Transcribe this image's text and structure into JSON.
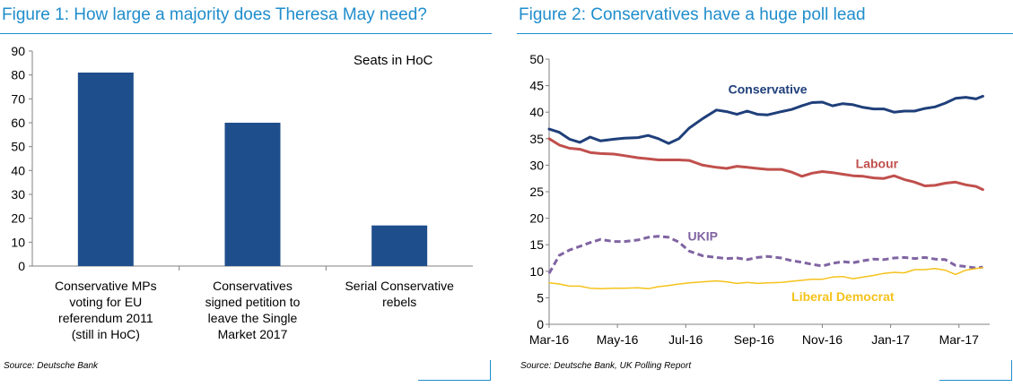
{
  "chart_data": [
    {
      "type": "bar",
      "title": "Figure 1: How large a majority does Theresa May need?",
      "annotation": "Seats in HoC",
      "categories": [
        [
          "Conservative MPs",
          "voting for EU",
          "referendum  2011",
          "(still in HoC)"
        ],
        [
          "Conservatives",
          "signed petition  to",
          "leave the Single",
          "Market 2017"
        ],
        [
          "Serial Conservative",
          "rebels"
        ]
      ],
      "values": [
        81,
        60,
        17
      ],
      "ylim": [
        0,
        90
      ],
      "yticks": [
        0,
        10,
        20,
        30,
        40,
        50,
        60,
        70,
        80,
        90
      ],
      "xlabel": "",
      "ylabel": "",
      "bar_color": "#1f4e8c",
      "source": "Source: Deutsche Bank"
    },
    {
      "type": "line",
      "title": "Figure 2: Conservatives have a huge poll lead",
      "ylim": [
        0,
        50
      ],
      "yticks": [
        0,
        5,
        10,
        15,
        20,
        25,
        30,
        35,
        40,
        45,
        50
      ],
      "xlim": [
        0,
        12.9
      ],
      "xticks": [
        {
          "x": 0,
          "label": "Mar-16"
        },
        {
          "x": 2,
          "label": "May-16"
        },
        {
          "x": 4,
          "label": "Jul-16"
        },
        {
          "x": 6,
          "label": "Sep-16"
        },
        {
          "x": 8,
          "label": "Nov-16"
        },
        {
          "x": 10,
          "label": "Jan-17"
        },
        {
          "x": 12,
          "label": "Mar-17"
        }
      ],
      "x_unit": "months since Mar-16",
      "series": [
        {
          "name": "Conservative",
          "color": "#1f3f7a",
          "dashed": false,
          "width": 3,
          "label_pos": [
            6.4,
            43.5
          ],
          "points": [
            [
              0,
              36.8
            ],
            [
              0.3,
              36.2
            ],
            [
              0.6,
              34.9
            ],
            [
              0.9,
              34.3
            ],
            [
              1.2,
              35.3
            ],
            [
              1.5,
              34.6
            ],
            [
              1.9,
              34.9
            ],
            [
              2.2,
              35.1
            ],
            [
              2.6,
              35.2
            ],
            [
              2.9,
              35.6
            ],
            [
              3.2,
              35.0
            ],
            [
              3.5,
              34.1
            ],
            [
              3.8,
              35.0
            ],
            [
              4.1,
              37.0
            ],
            [
              4.5,
              38.8
            ],
            [
              4.9,
              40.4
            ],
            [
              5.2,
              40.1
            ],
            [
              5.5,
              39.6
            ],
            [
              5.8,
              40.2
            ],
            [
              6.1,
              39.6
            ],
            [
              6.4,
              39.5
            ],
            [
              6.8,
              40.1
            ],
            [
              7.1,
              40.5
            ],
            [
              7.4,
              41.2
            ],
            [
              7.7,
              41.8
            ],
            [
              8.0,
              41.9
            ],
            [
              8.3,
              41.2
            ],
            [
              8.6,
              41.6
            ],
            [
              8.9,
              41.4
            ],
            [
              9.2,
              40.9
            ],
            [
              9.5,
              40.6
            ],
            [
              9.8,
              40.6
            ],
            [
              10.1,
              40.0
            ],
            [
              10.4,
              40.2
            ],
            [
              10.7,
              40.2
            ],
            [
              11.0,
              40.7
            ],
            [
              11.3,
              41.0
            ],
            [
              11.6,
              41.7
            ],
            [
              11.9,
              42.6
            ],
            [
              12.2,
              42.8
            ],
            [
              12.5,
              42.5
            ],
            [
              12.7,
              43.0
            ]
          ]
        },
        {
          "name": "Labour",
          "color": "#c0504d",
          "dashed": false,
          "width": 3,
          "label_pos": [
            9.6,
            29.5
          ],
          "points": [
            [
              0,
              35.0
            ],
            [
              0.3,
              33.8
            ],
            [
              0.6,
              33.2
            ],
            [
              0.9,
              33.0
            ],
            [
              1.2,
              32.4
            ],
            [
              1.5,
              32.2
            ],
            [
              1.9,
              32.1
            ],
            [
              2.2,
              31.8
            ],
            [
              2.6,
              31.4
            ],
            [
              2.9,
              31.2
            ],
            [
              3.2,
              31.0
            ],
            [
              3.5,
              31.0
            ],
            [
              3.8,
              31.0
            ],
            [
              4.1,
              30.9
            ],
            [
              4.5,
              30.0
            ],
            [
              4.9,
              29.6
            ],
            [
              5.2,
              29.4
            ],
            [
              5.5,
              29.8
            ],
            [
              5.8,
              29.6
            ],
            [
              6.1,
              29.4
            ],
            [
              6.4,
              29.2
            ],
            [
              6.8,
              29.2
            ],
            [
              7.1,
              28.7
            ],
            [
              7.4,
              27.9
            ],
            [
              7.7,
              28.5
            ],
            [
              8.0,
              28.8
            ],
            [
              8.3,
              28.6
            ],
            [
              8.6,
              28.3
            ],
            [
              8.9,
              28.0
            ],
            [
              9.2,
              27.9
            ],
            [
              9.5,
              27.6
            ],
            [
              9.8,
              27.5
            ],
            [
              10.1,
              28.0
            ],
            [
              10.4,
              27.3
            ],
            [
              10.7,
              26.8
            ],
            [
              11.0,
              26.1
            ],
            [
              11.3,
              26.2
            ],
            [
              11.6,
              26.6
            ],
            [
              11.9,
              26.8
            ],
            [
              12.2,
              26.3
            ],
            [
              12.5,
              26.0
            ],
            [
              12.7,
              25.4
            ]
          ]
        },
        {
          "name": "UKIP",
          "color": "#8064a2",
          "dashed": true,
          "width": 3,
          "label_pos": [
            4.5,
            15.8
          ],
          "points": [
            [
              0,
              9.6
            ],
            [
              0.3,
              13.0
            ],
            [
              0.6,
              14.0
            ],
            [
              0.9,
              14.7
            ],
            [
              1.2,
              15.4
            ],
            [
              1.5,
              16.0
            ],
            [
              1.9,
              15.6
            ],
            [
              2.2,
              15.6
            ],
            [
              2.6,
              15.9
            ],
            [
              2.9,
              16.4
            ],
            [
              3.2,
              16.6
            ],
            [
              3.5,
              16.4
            ],
            [
              3.8,
              15.5
            ],
            [
              4.1,
              13.8
            ],
            [
              4.5,
              12.9
            ],
            [
              4.9,
              12.6
            ],
            [
              5.2,
              12.4
            ],
            [
              5.5,
              12.5
            ],
            [
              5.8,
              12.2
            ],
            [
              6.1,
              12.6
            ],
            [
              6.4,
              12.8
            ],
            [
              6.8,
              12.5
            ],
            [
              7.1,
              12.0
            ],
            [
              7.4,
              11.7
            ],
            [
              7.7,
              11.3
            ],
            [
              8.0,
              11.0
            ],
            [
              8.3,
              11.5
            ],
            [
              8.6,
              11.8
            ],
            [
              8.9,
              11.6
            ],
            [
              9.2,
              12.0
            ],
            [
              9.5,
              12.3
            ],
            [
              9.8,
              12.2
            ],
            [
              10.1,
              12.5
            ],
            [
              10.4,
              12.6
            ],
            [
              10.7,
              12.4
            ],
            [
              11.0,
              12.6
            ],
            [
              11.3,
              12.3
            ],
            [
              11.6,
              12.2
            ],
            [
              11.9,
              11.1
            ],
            [
              12.2,
              10.9
            ],
            [
              12.5,
              10.6
            ],
            [
              12.7,
              10.8
            ]
          ]
        },
        {
          "name": "Liberal Democrat",
          "color": "#f5c21b",
          "dashed": false,
          "width": 1.5,
          "label_pos": [
            8.6,
            4.4
          ],
          "points": [
            [
              0,
              7.8
            ],
            [
              0.3,
              7.6
            ],
            [
              0.6,
              7.2
            ],
            [
              0.9,
              7.2
            ],
            [
              1.2,
              6.8
            ],
            [
              1.5,
              6.7
            ],
            [
              1.9,
              6.8
            ],
            [
              2.2,
              6.8
            ],
            [
              2.6,
              6.9
            ],
            [
              2.9,
              6.7
            ],
            [
              3.2,
              7.1
            ],
            [
              3.5,
              7.3
            ],
            [
              3.8,
              7.6
            ],
            [
              4.1,
              7.8
            ],
            [
              4.5,
              8.0
            ],
            [
              4.9,
              8.2
            ],
            [
              5.2,
              8.0
            ],
            [
              5.5,
              7.7
            ],
            [
              5.8,
              7.9
            ],
            [
              6.1,
              7.7
            ],
            [
              6.4,
              7.8
            ],
            [
              6.8,
              7.9
            ],
            [
              7.1,
              8.1
            ],
            [
              7.4,
              8.3
            ],
            [
              7.7,
              8.5
            ],
            [
              8.0,
              8.5
            ],
            [
              8.3,
              8.9
            ],
            [
              8.6,
              9.0
            ],
            [
              8.9,
              8.6
            ],
            [
              9.2,
              8.9
            ],
            [
              9.5,
              9.2
            ],
            [
              9.8,
              9.6
            ],
            [
              10.1,
              9.8
            ],
            [
              10.4,
              9.7
            ],
            [
              10.7,
              10.3
            ],
            [
              11.0,
              10.3
            ],
            [
              11.3,
              10.5
            ],
            [
              11.6,
              10.2
            ],
            [
              11.9,
              9.4
            ],
            [
              12.2,
              10.2
            ],
            [
              12.5,
              10.5
            ],
            [
              12.7,
              10.7
            ]
          ]
        }
      ],
      "source": "Source: Deutsche Bank, UK Polling Report"
    }
  ]
}
